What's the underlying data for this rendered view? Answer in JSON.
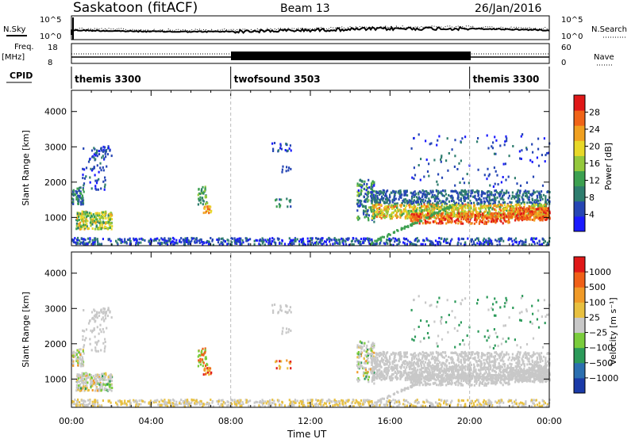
{
  "header": {
    "site": "Saskatoon (fitACF)",
    "beam": "Beam 13",
    "date": "26/Jan/2016"
  },
  "left_labels": {
    "nsky": "N.Sky",
    "freq": "Freq.",
    "freq_unit": "[MHz]",
    "cpid": "CPID"
  },
  "right_labels": {
    "nsearch": "N.Search",
    "nave": "Nave"
  },
  "noise_axis": {
    "left_top": "10^5",
    "left_bottom": "10^0",
    "right_top": "10^5",
    "right_bottom": "10^0"
  },
  "freq_axis": {
    "left_top": "18",
    "left_bottom": "8",
    "right_top": "60",
    "right_bottom": "0"
  },
  "cpid_segments": [
    {
      "label": "themis 3300",
      "start_hour": 0,
      "end_hour": 8
    },
    {
      "label": "twofsound 3503",
      "start_hour": 8,
      "end_hour": 20
    },
    {
      "label": "themis 3300",
      "start_hour": 20,
      "end_hour": 24
    }
  ],
  "colors": {
    "power_scale": [
      "#1a1aff",
      "#2646b4",
      "#2e7d6e",
      "#3ca050",
      "#94c83c",
      "#e8d828",
      "#f0a020",
      "#f06418",
      "#e01818"
    ],
    "velocity_scale": [
      "#1a3aa8",
      "#2b6fb0",
      "#2c9a5a",
      "#7acc3c",
      "#c8c8c8",
      "#e8c040",
      "#f09a28",
      "#f06018",
      "#e01818"
    ]
  },
  "chart_data": [
    {
      "type": "heatmap",
      "title": "Power",
      "ylabel": "Slant Range [km]",
      "ylim": [
        200,
        4600
      ],
      "yticks": [
        "1000",
        "2000",
        "3000",
        "4000"
      ],
      "xlim": [
        0,
        24
      ],
      "xticks": [
        "00:00",
        "04:00",
        "08:00",
        "12:00",
        "16:00",
        "20:00",
        "00:00"
      ],
      "colorbar": {
        "label": "Power [dB]",
        "ticks": [
          "4",
          "8",
          "12",
          "16",
          "20",
          "24",
          "28"
        ],
        "range": [
          0,
          30
        ]
      }
    },
    {
      "type": "heatmap",
      "title": "Velocity",
      "ylabel": "Slant Range [km]",
      "ylim": [
        200,
        4600
      ],
      "yticks": [
        "1000",
        "2000",
        "3000",
        "4000"
      ],
      "xlim": [
        0,
        24
      ],
      "xticks": [
        "00:00",
        "04:00",
        "08:00",
        "12:00",
        "16:00",
        "20:00",
        "00:00"
      ],
      "xlabel": "Time UT",
      "colorbar": {
        "label": "Velocity [m s⁻¹]",
        "ticks": [
          "1000",
          "500",
          "100",
          "25",
          "−25",
          "−100",
          "−500",
          "−1000"
        ]
      }
    }
  ]
}
